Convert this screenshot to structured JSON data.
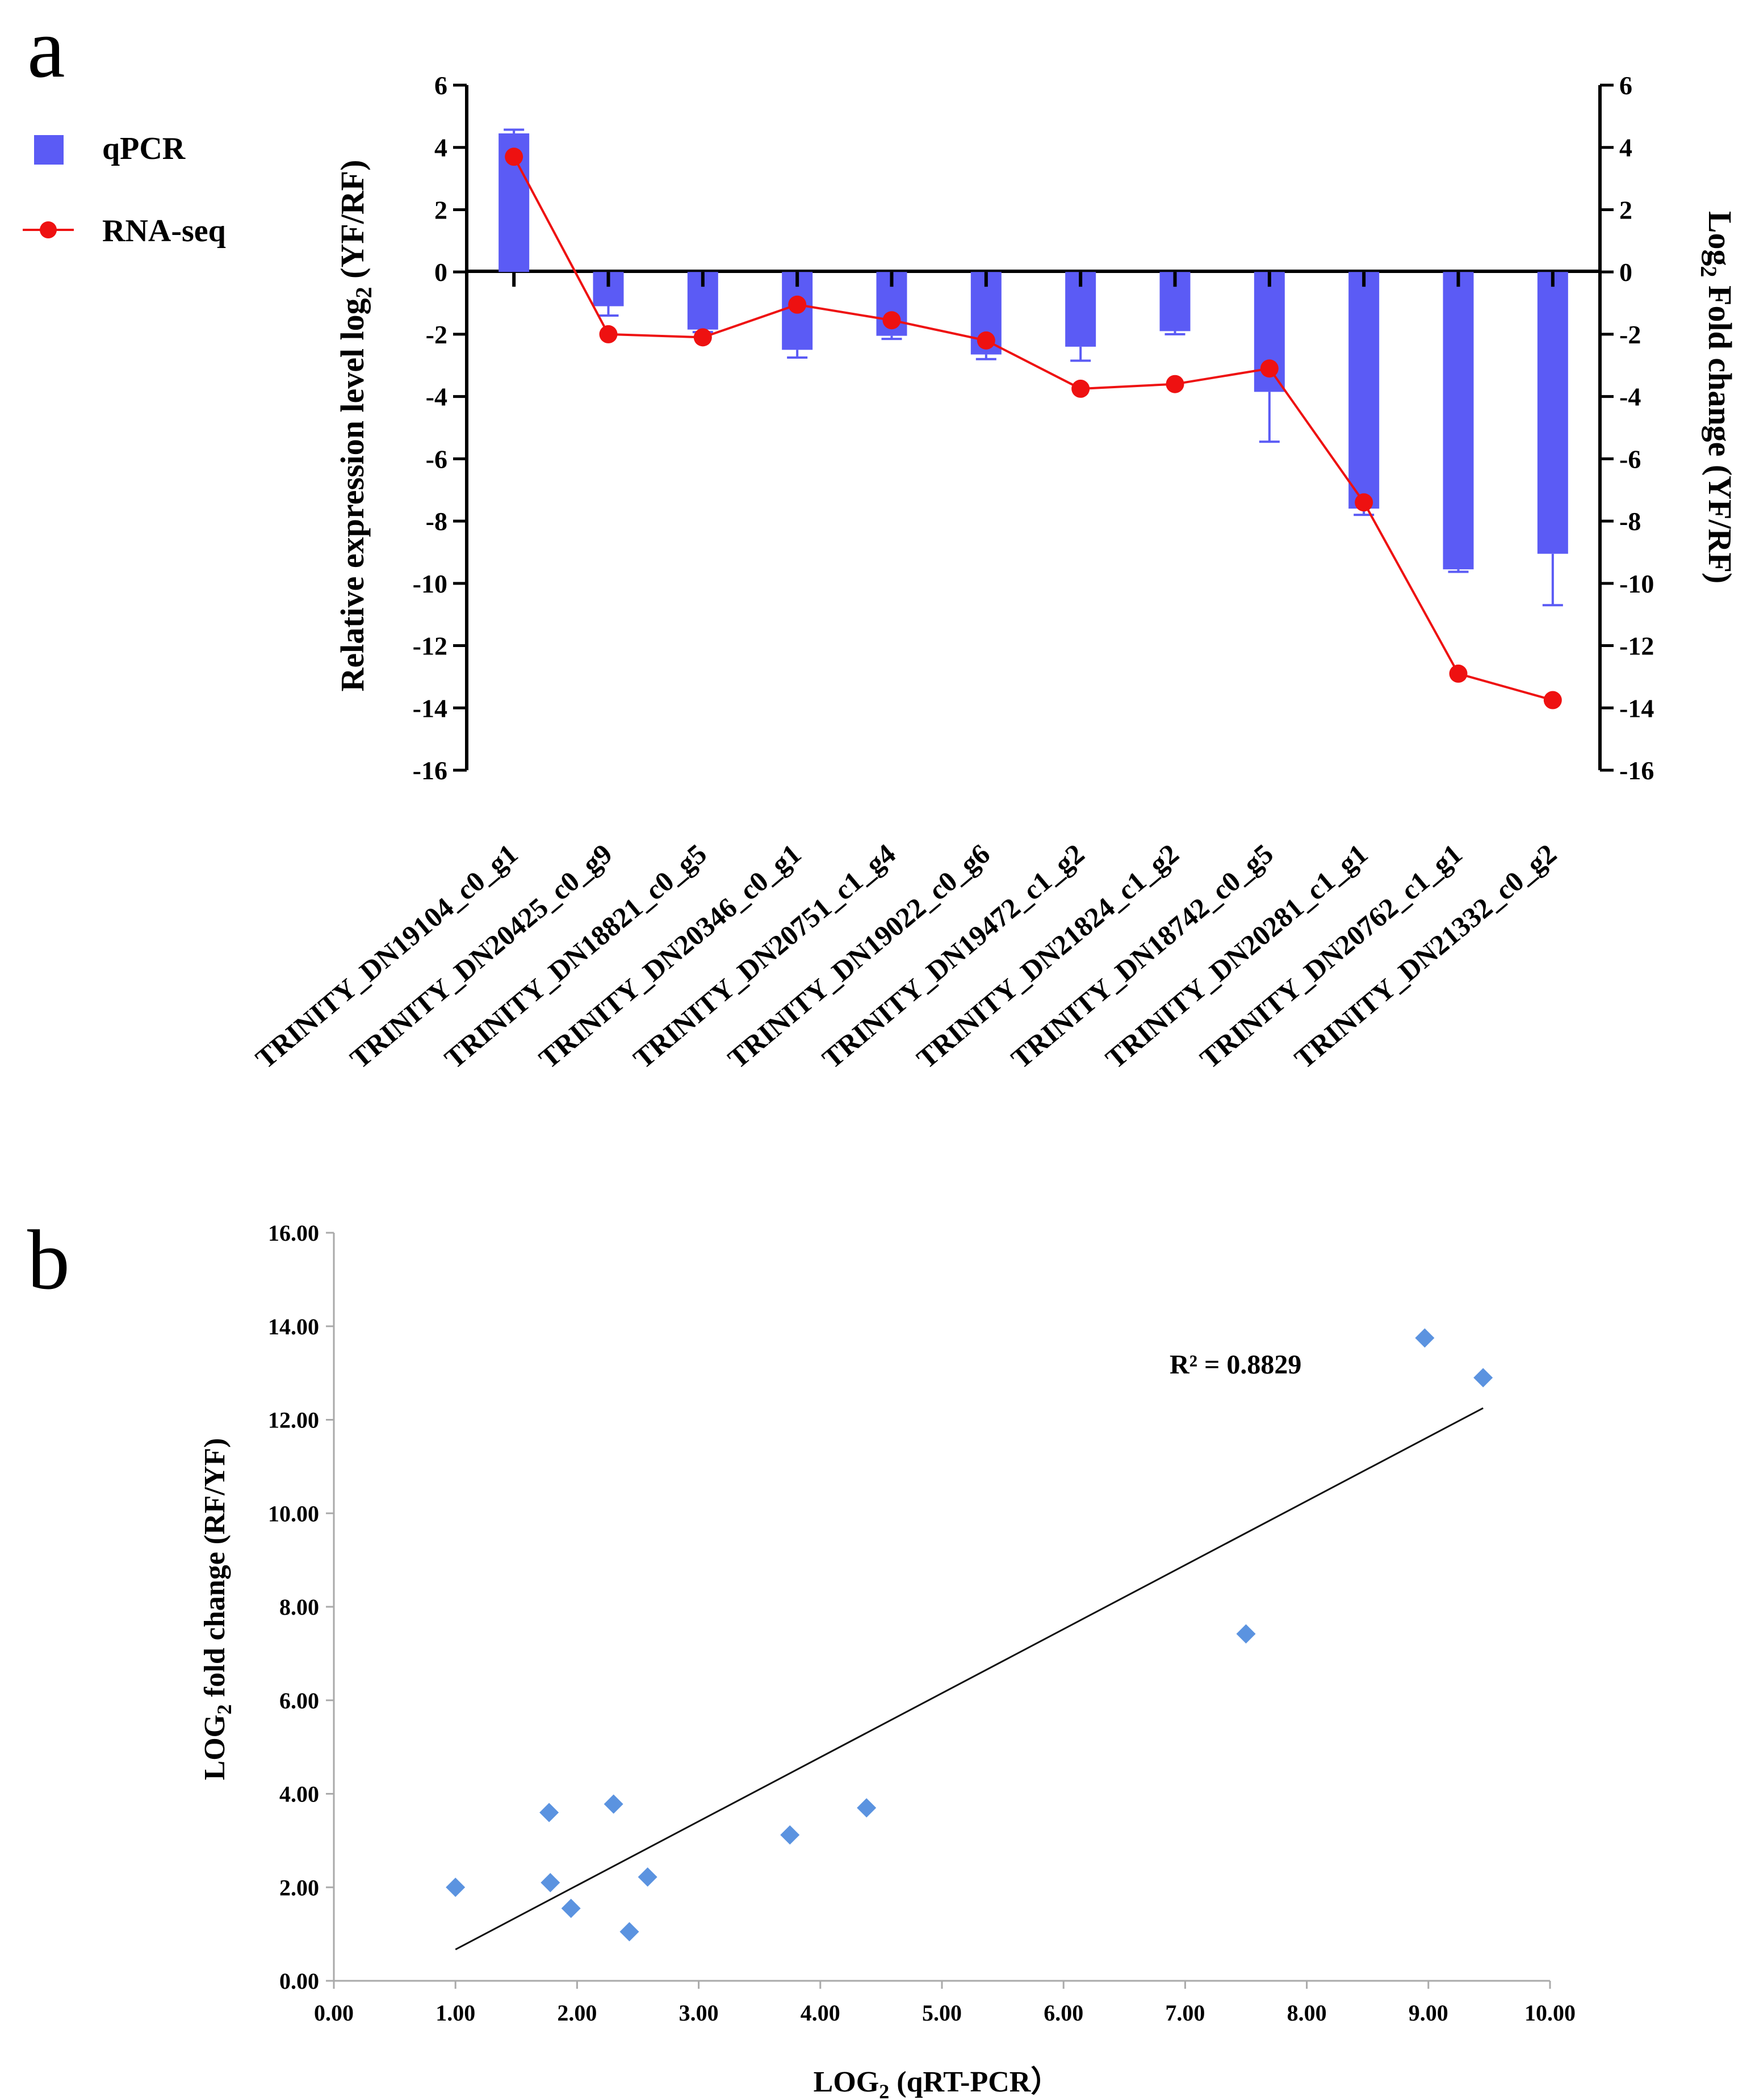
{
  "chart_data": [
    {
      "panel_label": "a",
      "type": "bar",
      "categories": [
        "TRINITY_DN19104_c0_g1",
        "TRINITY_DN20425_c0_g9",
        "TRINITY_DN18821_c0_g5",
        "TRINITY_DN20346_c0_g1",
        "TRINITY_DN20751_c1_g4",
        "TRINITY_DN19022_c0_g6",
        "TRINITY_DN19472_c1_g2",
        "TRINITY_DN21824_c1_g2",
        "TRINITY_DN18742_c0_g5",
        "TRINITY_DN20281_c1_g1",
        "TRINITY_DN20762_c1_g1",
        "TRINITY_DN21332_c0_g2"
      ],
      "series": [
        {
          "name": "qPCR",
          "kind": "bar",
          "color": "#5b5bf5",
          "values": [
            4.45,
            -1.1,
            -1.85,
            -2.5,
            -2.05,
            -2.65,
            -2.4,
            -1.9,
            -3.85,
            -7.6,
            -9.55,
            -9.05
          ],
          "error": [
            0.12,
            0.3,
            0.08,
            0.25,
            0.1,
            0.15,
            0.45,
            0.1,
            1.6,
            0.2,
            0.08,
            1.65
          ]
        },
        {
          "name": "RNA-seq",
          "kind": "line",
          "axis": "right",
          "color": "#ee1111",
          "values": [
            3.7,
            -2.0,
            -2.1,
            -1.05,
            -1.55,
            -2.2,
            -3.75,
            -3.6,
            -3.1,
            -7.4,
            -12.9,
            -13.75
          ]
        }
      ],
      "ylabel": "Relative expression level log",
      "ylabel_sub": "2",
      "ylabel_tail": " (YF/RF)",
      "y2label": "Log",
      "y2label_sub": "2",
      "y2label_tail": " Fold change (YF/RF)",
      "ylim": [
        -16,
        6
      ],
      "yticks": [
        6,
        4,
        2,
        0,
        -2,
        -4,
        -6,
        -8,
        -10,
        -12,
        -14,
        -16
      ],
      "legend": "top-left"
    },
    {
      "panel_label": "b",
      "type": "scatter",
      "series": [
        {
          "name": "genes",
          "color": "#5b93e0",
          "x": [
            1.0,
            1.77,
            1.78,
            1.95,
            2.3,
            2.43,
            2.58,
            3.75,
            4.38,
            7.5,
            8.97,
            9.45
          ],
          "y": [
            2.0,
            3.6,
            2.1,
            1.55,
            3.78,
            1.05,
            2.22,
            3.12,
            3.7,
            7.42,
            13.75,
            12.9
          ]
        }
      ],
      "trendline": {
        "x": [
          1.0,
          9.45
        ],
        "y": [
          0.67,
          12.25
        ],
        "color": "#111111"
      },
      "annotation": "R² = 0.8829",
      "xlabel": "LOG",
      "xlabel_sub": "2",
      "xlabel_tail": " (qRT-PCR）",
      "ylabel": "LOG",
      "ylabel_sub": "2",
      "ylabel_tail": " fold change (RF/YF)",
      "xlim": [
        0,
        10
      ],
      "ylim": [
        0,
        16
      ],
      "xticks": [
        "0.00",
        "1.00",
        "2.00",
        "3.00",
        "4.00",
        "5.00",
        "6.00",
        "7.00",
        "8.00",
        "9.00",
        "10.00"
      ],
      "yticks": [
        "0.00",
        "2.00",
        "4.00",
        "6.00",
        "8.00",
        "10.00",
        "12.00",
        "14.00",
        "16.00"
      ]
    }
  ]
}
